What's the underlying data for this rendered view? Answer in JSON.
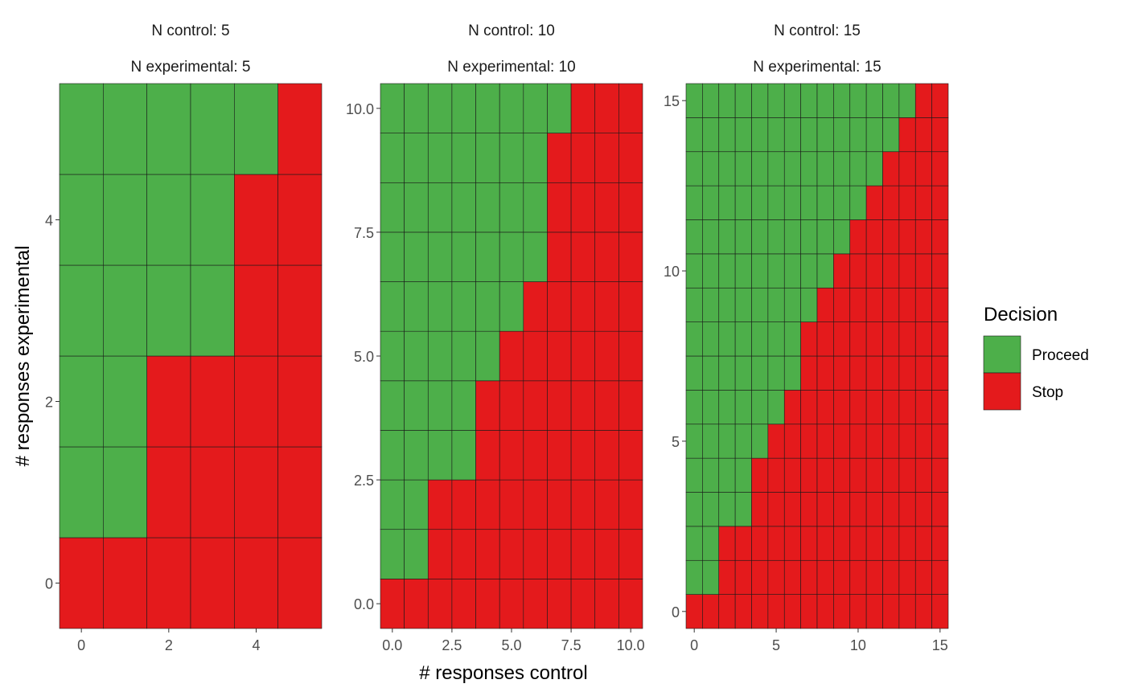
{
  "chart_data": {
    "type": "heatmap",
    "xlabel": "# responses control",
    "ylabel": "# responses experimental",
    "legend": {
      "title": "Decision",
      "placement": "right",
      "entries": [
        {
          "label": "Proceed",
          "color": "#4DAF4A"
        },
        {
          "label": "Stop",
          "color": "#E41A1C"
        }
      ]
    },
    "colors": {
      "Proceed": "#4DAF4A",
      "Stop": "#E41A1C",
      "grid": "#1a1a1a"
    },
    "panels": [
      {
        "strip": [
          "N control: 5",
          "N experimental: 5"
        ],
        "n": 5,
        "xlim": [
          -0.5,
          5.5
        ],
        "ylim": [
          -0.5,
          5.5
        ],
        "xticks": [
          0,
          2,
          4
        ],
        "xtick_labels": [
          "0",
          "2",
          "4"
        ],
        "yticks": [
          0,
          2,
          4
        ],
        "ytick_labels": [
          "0",
          "2",
          "4"
        ],
        "proceed_min_experimental": [
          1,
          1,
          3,
          3,
          5,
          6
        ]
      },
      {
        "strip": [
          "N control: 10",
          "N experimental: 10"
        ],
        "n": 10,
        "xlim": [
          -0.5,
          10.5
        ],
        "ylim": [
          -0.5,
          10.5
        ],
        "xticks": [
          0,
          2.5,
          5,
          7.5,
          10
        ],
        "xtick_labels": [
          "0.0",
          "2.5",
          "5.0",
          "7.5",
          "10.0"
        ],
        "yticks": [
          0,
          2.5,
          5,
          7.5,
          10
        ],
        "ytick_labels": [
          "0.0",
          "2.5",
          "5.0",
          "7.5",
          "10.0"
        ],
        "proceed_min_experimental": [
          1,
          1,
          3,
          3,
          5,
          6,
          7,
          10,
          11,
          11,
          11
        ]
      },
      {
        "strip": [
          "N control: 15",
          "N experimental: 15"
        ],
        "n": 15,
        "xlim": [
          -0.5,
          15.5
        ],
        "ylim": [
          -0.5,
          15.5
        ],
        "xticks": [
          0,
          5,
          10,
          15
        ],
        "xtick_labels": [
          "0",
          "5",
          "10",
          "15"
        ],
        "yticks": [
          0,
          5,
          10,
          15
        ],
        "ytick_labels": [
          "0",
          "5",
          "10",
          "15"
        ],
        "proceed_min_experimental": [
          1,
          1,
          3,
          3,
          5,
          6,
          7,
          9,
          10,
          11,
          12,
          13,
          14,
          15,
          16,
          16
        ]
      }
    ]
  }
}
